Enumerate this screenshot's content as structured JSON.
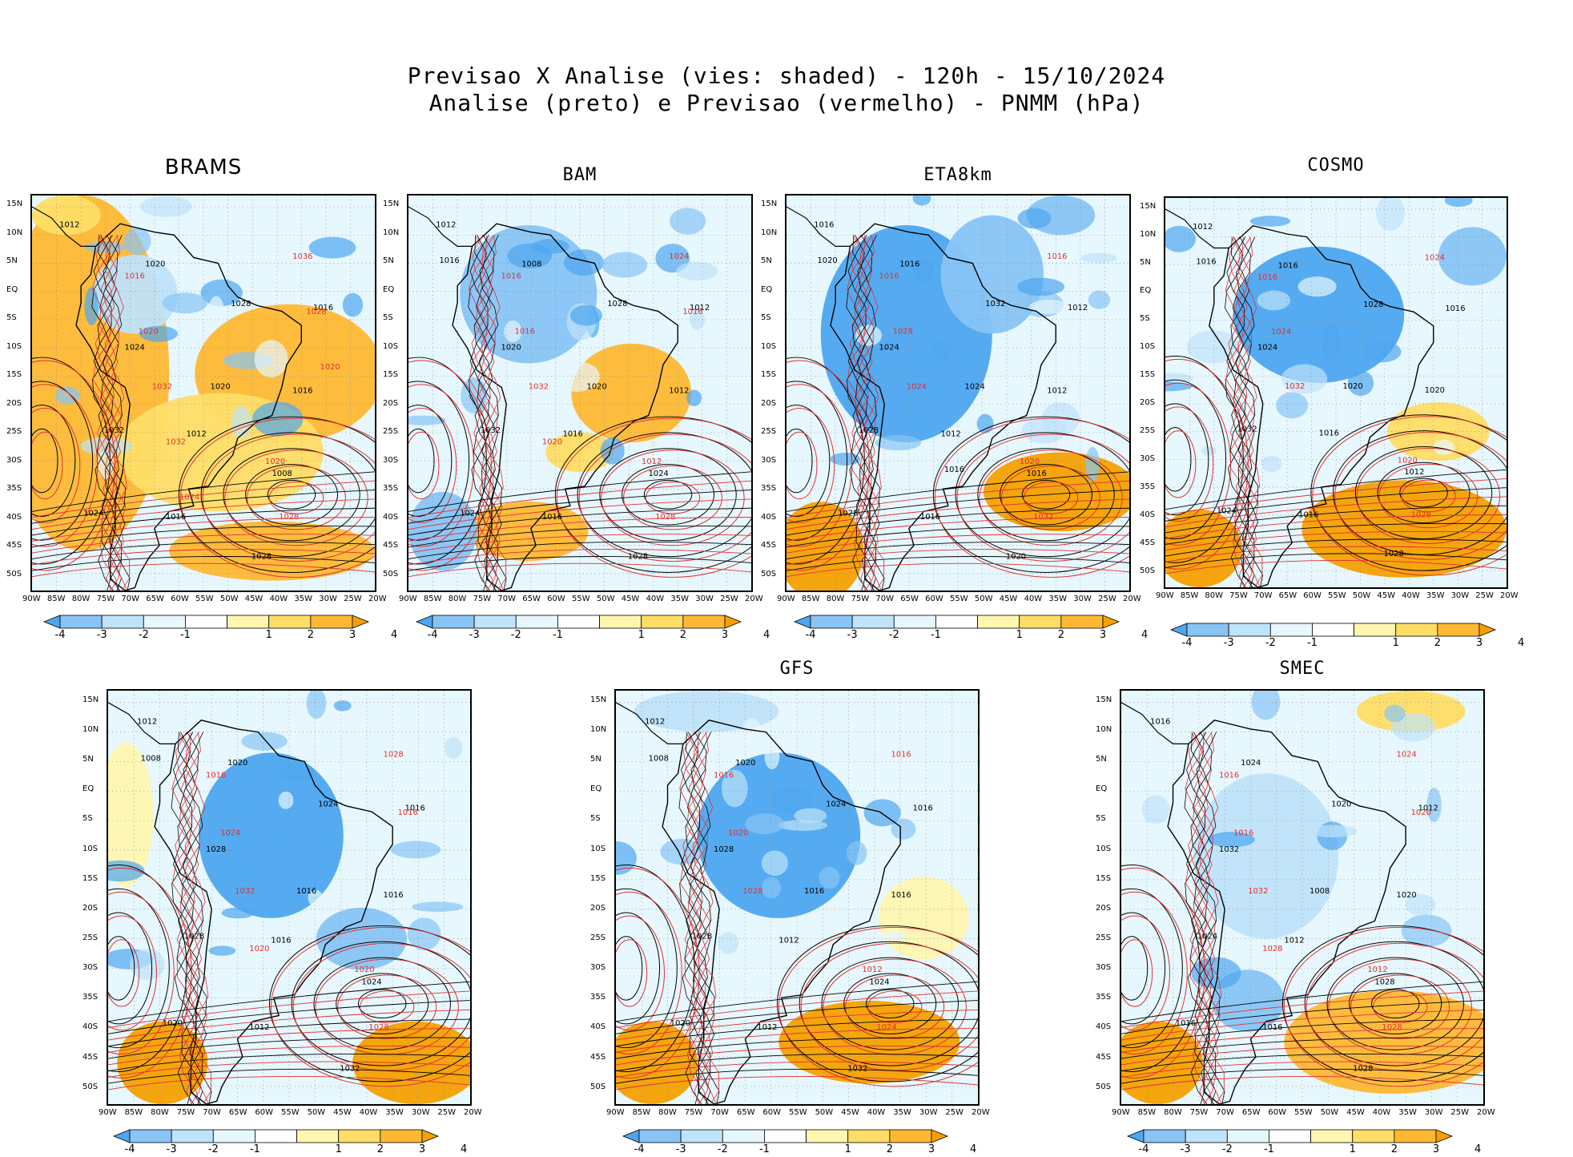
{
  "title": {
    "line1": "Previsao X Analise (vies: shaded) - 120h - 15/10/2024",
    "line2": "Analise (preto) e Previsao (vermelho) - PNMM (hPa)"
  },
  "axes": {
    "lat_labels": [
      "15N",
      "10N",
      "5N",
      "EQ",
      "5S",
      "10S",
      "15S",
      "20S",
      "25S",
      "30S",
      "35S",
      "40S",
      "45S",
      "50S"
    ],
    "lon_labels": [
      "90W",
      "85W",
      "80W",
      "75W",
      "70W",
      "65W",
      "60W",
      "55W",
      "50W",
      "45W",
      "40W",
      "35W",
      "30W",
      "25W",
      "20W"
    ]
  },
  "colorbar": {
    "labels": [
      "-4",
      "-3",
      "-2",
      "-1",
      "1",
      "2",
      "3",
      "4"
    ],
    "colors": [
      "#4da6f0",
      "#88c4f5",
      "#bfe3fa",
      "#e6f7fd",
      "#ffffff",
      "#fff6b0",
      "#ffdd66",
      "#ffb833",
      "#f5a000"
    ]
  },
  "legend_colors": {
    "analysis": "#000000",
    "forecast": "#e03030"
  },
  "chart_data": [
    {
      "type": "heatmap",
      "model": "BRAMS",
      "title": "BRAMS",
      "bias_field": "mostly positive (orange) over Pacific and South Atlantic, near-neutral over tropical continent",
      "contour_labels_black": [
        "1012",
        "1012",
        "1016",
        "1016",
        "1016",
        "1020",
        "1008",
        "1024",
        "1028",
        "1032",
        "1028",
        "1024",
        "1020"
      ],
      "contour_labels_red": [
        "1016",
        "1020",
        "1020",
        "1028",
        "1032",
        "1036",
        "1032",
        "1028",
        "1024",
        "1020"
      ]
    },
    {
      "type": "heatmap",
      "model": "BAM",
      "title": "BAM",
      "bias_field": "negative (blue) over northern continent, positive (orange) around 20-40S Atlantic",
      "contour_labels_black": [
        "1012",
        "1016",
        "1012",
        "1016",
        "1012",
        "1008",
        "1024",
        "1020",
        "1028",
        "1032",
        "1028",
        "1024",
        "1020",
        "1016"
      ],
      "contour_labels_red": [
        "1016",
        "1012",
        "1016",
        "1028",
        "1032",
        "1024",
        "1020",
        "1016"
      ]
    },
    {
      "type": "heatmap",
      "model": "ETA8km",
      "title": "ETA8km",
      "bias_field": "negative (blue) over most of continent, positive (orange) south Atlantic near 35-45S",
      "contour_labels_black": [
        "1016",
        "1012",
        "1012",
        "1016",
        "1012",
        "1016",
        "1016",
        "1024",
        "1020",
        "1028",
        "1032",
        "1028",
        "1024",
        "1020",
        "1016"
      ],
      "contour_labels_red": [
        "1016",
        "1020",
        "1028",
        "1032",
        "1024",
        "1016"
      ]
    },
    {
      "type": "heatmap",
      "model": "COSMO",
      "title": "COSMO",
      "bias_field": "negative (blue) tropical Atlantic and central continent, positive (orange) south Atlantic",
      "contour_labels_black": [
        "1012",
        "1016",
        "1016",
        "1016",
        "1020",
        "1016",
        "1012",
        "1024",
        "1028",
        "1032",
        "1028",
        "1024",
        "1020",
        "1016"
      ],
      "contour_labels_red": [
        "1016",
        "1020",
        "1024",
        "1028",
        "1032",
        "1024"
      ]
    },
    {
      "type": "heatmap",
      "model": "",
      "title": "",
      "bias_field": "negative (blue) central continent, positive (orange) far south Pacific and Atlantic",
      "contour_labels_black": [
        "1012",
        "1016",
        "1016",
        "1012",
        "1016",
        "1020",
        "1024",
        "1028",
        "1032",
        "1028",
        "1024",
        "1020",
        "1016",
        "1008"
      ],
      "contour_labels_red": [
        "1016",
        "1020",
        "1024",
        "1028",
        "1032",
        "1028",
        "1020",
        "1016"
      ]
    },
    {
      "type": "heatmap",
      "model": "GFS",
      "title": "GFS",
      "bias_field": "negative (blue) over Brazil, positive (orange) in south Atlantic 40-50S",
      "contour_labels_black": [
        "1012",
        "1012",
        "1016",
        "1012",
        "1016",
        "1020",
        "1024",
        "1028",
        "1032",
        "1028",
        "1024",
        "1020",
        "1016",
        "1008"
      ],
      "contour_labels_red": [
        "1016",
        "1012",
        "1020",
        "1024",
        "1028",
        "1016"
      ]
    },
    {
      "type": "heatmap",
      "model": "SMEC",
      "title": "SMEC",
      "bias_field": "weakly negative over continent, positive (orange) south Atlantic and southeast Pacific",
      "contour_labels_black": [
        "1016",
        "1012",
        "1012",
        "1016",
        "1020",
        "1024",
        "1028",
        "1032",
        "1028",
        "1024",
        "1020",
        "1016",
        "1008"
      ],
      "contour_labels_red": [
        "1016",
        "1012",
        "1016",
        "1028",
        "1032",
        "1024",
        "1028",
        "1020"
      ]
    }
  ]
}
